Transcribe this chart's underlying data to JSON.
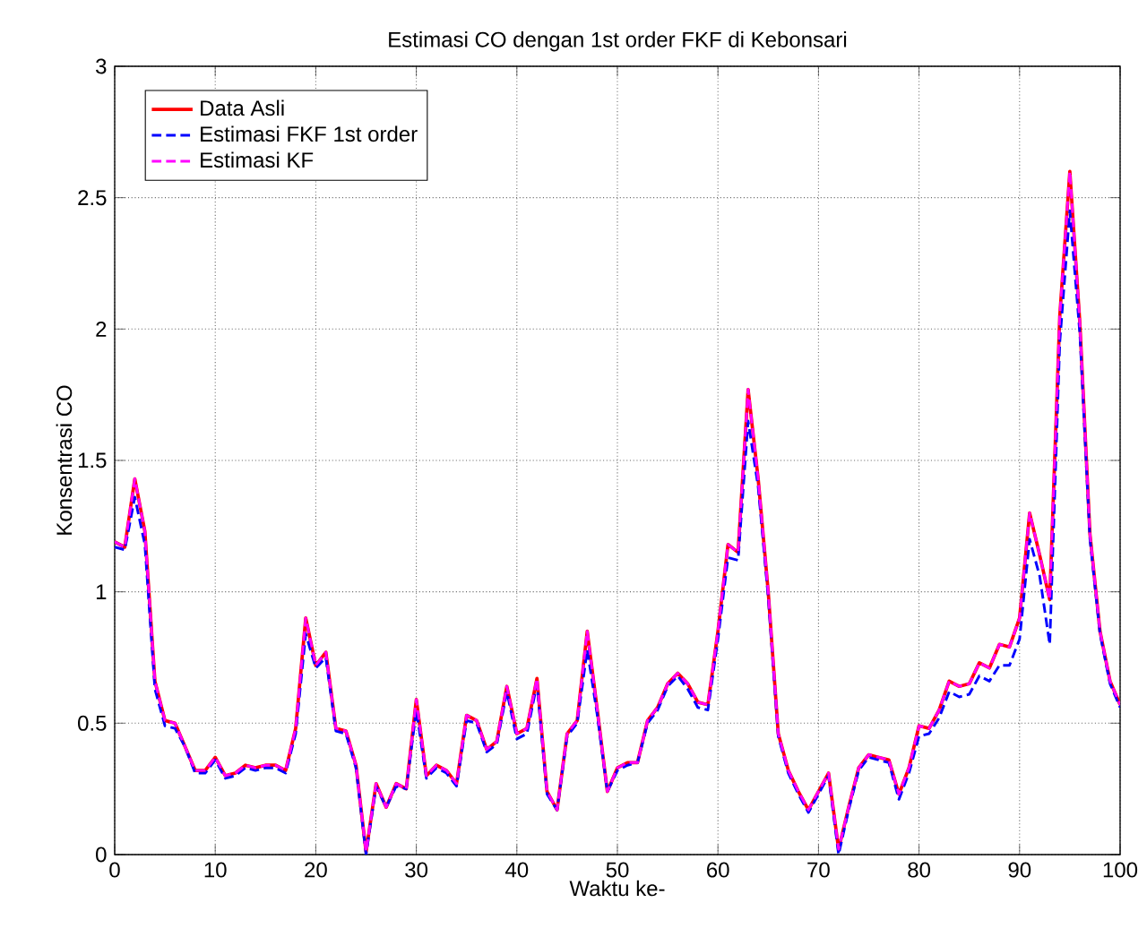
{
  "chart_data": {
    "type": "line",
    "title": "Estimasi CO dengan 1st order FKF di Kebonsari",
    "xlabel": "Waktu ke-",
    "ylabel": "Konsentrasi CO",
    "x": [
      0,
      1,
      2,
      3,
      4,
      5,
      6,
      7,
      8,
      9,
      10,
      11,
      12,
      13,
      14,
      15,
      16,
      17,
      18,
      19,
      20,
      21,
      22,
      23,
      24,
      25,
      26,
      27,
      28,
      29,
      30,
      31,
      32,
      33,
      34,
      35,
      36,
      37,
      38,
      39,
      40,
      41,
      42,
      43,
      44,
      45,
      46,
      47,
      48,
      49,
      50,
      51,
      52,
      53,
      54,
      55,
      56,
      57,
      58,
      59,
      60,
      61,
      62,
      63,
      64,
      65,
      66,
      67,
      68,
      69,
      70,
      71,
      72,
      73,
      74,
      75,
      76,
      77,
      78,
      79,
      80,
      81,
      82,
      83,
      84,
      85,
      86,
      87,
      88,
      89,
      90,
      91,
      92,
      93,
      94,
      95,
      96,
      97,
      98,
      99,
      100
    ],
    "series": [
      {
        "name": "Data Asli",
        "color": "#ff0000",
        "line_style": "solid",
        "values": [
          1.19,
          1.17,
          1.43,
          1.23,
          0.66,
          0.51,
          0.5,
          0.41,
          0.32,
          0.32,
          0.37,
          0.3,
          0.31,
          0.34,
          0.33,
          0.34,
          0.34,
          0.32,
          0.48,
          0.9,
          0.72,
          0.77,
          0.48,
          0.47,
          0.34,
          0.01,
          0.27,
          0.18,
          0.27,
          0.25,
          0.59,
          0.3,
          0.34,
          0.32,
          0.27,
          0.53,
          0.51,
          0.4,
          0.43,
          0.64,
          0.46,
          0.48,
          0.67,
          0.24,
          0.17,
          0.46,
          0.51,
          0.85,
          0.55,
          0.24,
          0.33,
          0.35,
          0.35,
          0.51,
          0.56,
          0.65,
          0.69,
          0.65,
          0.58,
          0.57,
          0.85,
          1.18,
          1.15,
          1.77,
          1.43,
          1.0,
          0.46,
          0.32,
          0.24,
          0.17,
          0.24,
          0.31,
          0.02,
          0.18,
          0.33,
          0.38,
          0.37,
          0.36,
          0.23,
          0.33,
          0.49,
          0.48,
          0.55,
          0.66,
          0.64,
          0.65,
          0.73,
          0.71,
          0.8,
          0.79,
          0.9,
          1.3,
          1.14,
          0.97,
          2.05,
          2.6,
          2.02,
          1.22,
          0.85,
          0.66,
          0.57
        ]
      },
      {
        "name": "Estimasi FKF 1st order",
        "color": "#0000ff",
        "line_style": "dashed",
        "values": [
          1.17,
          1.16,
          1.36,
          1.18,
          0.63,
          0.49,
          0.48,
          0.41,
          0.31,
          0.31,
          0.36,
          0.29,
          0.3,
          0.33,
          0.32,
          0.33,
          0.33,
          0.31,
          0.46,
          0.84,
          0.71,
          0.75,
          0.47,
          0.46,
          0.33,
          0.0,
          0.26,
          0.18,
          0.26,
          0.25,
          0.55,
          0.29,
          0.33,
          0.31,
          0.26,
          0.51,
          0.5,
          0.39,
          0.42,
          0.62,
          0.44,
          0.46,
          0.65,
          0.23,
          0.17,
          0.45,
          0.5,
          0.78,
          0.53,
          0.24,
          0.32,
          0.34,
          0.35,
          0.5,
          0.55,
          0.64,
          0.68,
          0.63,
          0.56,
          0.55,
          0.82,
          1.13,
          1.12,
          1.65,
          1.4,
          0.98,
          0.45,
          0.31,
          0.23,
          0.16,
          0.23,
          0.3,
          0.0,
          0.17,
          0.32,
          0.37,
          0.36,
          0.35,
          0.21,
          0.31,
          0.45,
          0.46,
          0.52,
          0.62,
          0.6,
          0.61,
          0.68,
          0.66,
          0.72,
          0.72,
          0.82,
          1.2,
          1.06,
          0.8,
          1.95,
          2.45,
          1.98,
          1.2,
          0.84,
          0.65,
          0.56
        ]
      },
      {
        "name": "Estimasi KF",
        "color": "#ff00ff",
        "line_style": "dashed",
        "values": [
          1.19,
          1.17,
          1.43,
          1.23,
          0.66,
          0.51,
          0.5,
          0.41,
          0.32,
          0.32,
          0.37,
          0.3,
          0.31,
          0.34,
          0.33,
          0.34,
          0.34,
          0.32,
          0.48,
          0.9,
          0.72,
          0.77,
          0.48,
          0.47,
          0.34,
          0.01,
          0.27,
          0.18,
          0.27,
          0.25,
          0.59,
          0.3,
          0.34,
          0.32,
          0.27,
          0.53,
          0.51,
          0.4,
          0.43,
          0.64,
          0.46,
          0.48,
          0.67,
          0.24,
          0.17,
          0.46,
          0.51,
          0.85,
          0.55,
          0.24,
          0.33,
          0.35,
          0.35,
          0.51,
          0.56,
          0.65,
          0.69,
          0.65,
          0.58,
          0.57,
          0.85,
          1.18,
          1.15,
          1.77,
          1.43,
          1.0,
          0.46,
          0.32,
          0.24,
          0.17,
          0.24,
          0.31,
          0.02,
          0.18,
          0.33,
          0.38,
          0.37,
          0.36,
          0.23,
          0.33,
          0.49,
          0.48,
          0.55,
          0.66,
          0.64,
          0.65,
          0.73,
          0.71,
          0.8,
          0.79,
          0.9,
          1.3,
          1.14,
          0.97,
          2.05,
          2.6,
          2.02,
          1.22,
          0.85,
          0.66,
          0.57
        ]
      }
    ],
    "xlim": [
      0,
      100
    ],
    "ylim": [
      0,
      3
    ],
    "xticks": [
      0,
      10,
      20,
      30,
      40,
      50,
      60,
      70,
      80,
      90,
      100
    ],
    "yticks": [
      0,
      0.5,
      1,
      1.5,
      2,
      2.5,
      3
    ],
    "grid": true,
    "legend": "top left",
    "marker": "none"
  }
}
